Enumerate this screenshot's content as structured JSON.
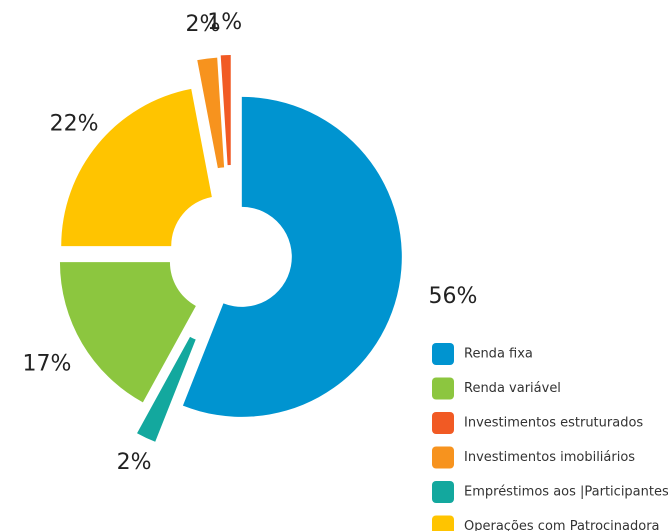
{
  "chart_data": {
    "type": "pie",
    "categories": [
      "Renda fixa",
      "Renda variável",
      "Investimentos estruturados",
      "Investimentos imobiliários",
      "Empréstimos aos |Participantes",
      "Operações com Patrocinadora"
    ],
    "values": [
      56,
      17,
      1,
      2,
      2,
      22
    ],
    "value_labels": [
      "56%",
      "17%",
      "1%",
      "2%",
      "2%",
      "22%"
    ],
    "colors": [
      "#0094d0",
      "#8cc63f",
      "#f15a24",
      "#f7931e",
      "#13a89e",
      "#ffc400"
    ],
    "legend": "bottom-right"
  }
}
